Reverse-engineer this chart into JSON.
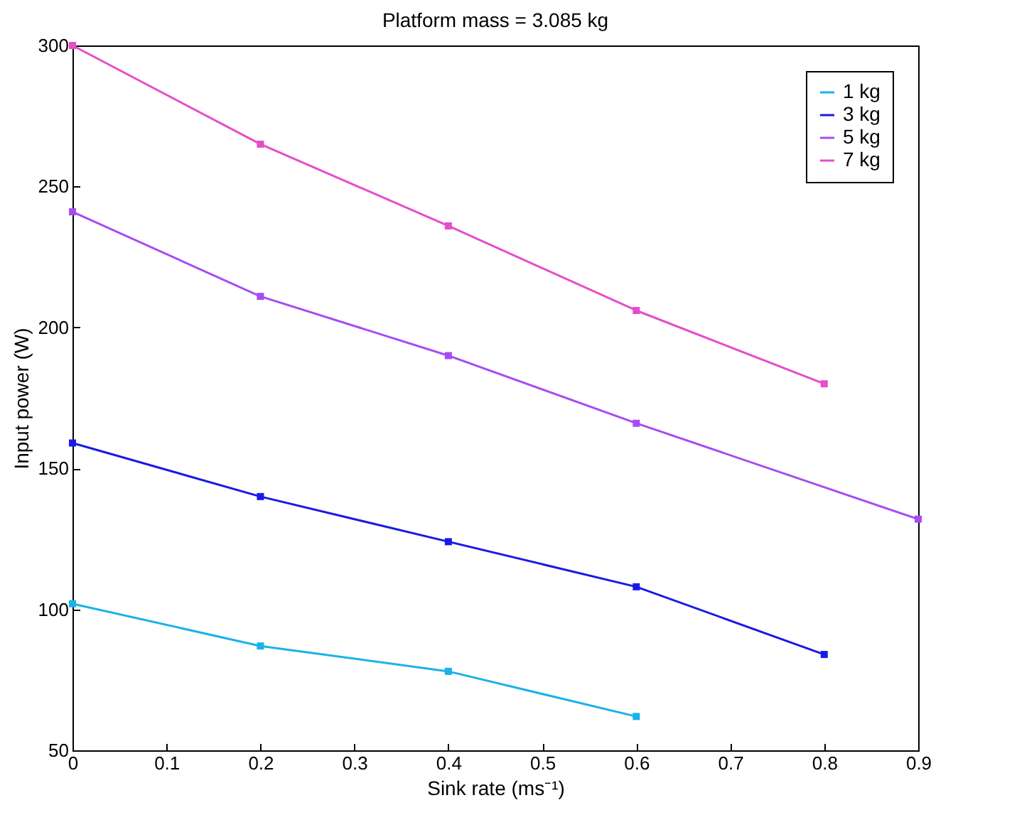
{
  "chart_data": {
    "type": "line",
    "title": "Platform mass = 3.085 kg",
    "xlabel": "Sink rate (ms⁻¹)",
    "ylabel": "Input power (W)",
    "xlim": [
      0,
      0.9
    ],
    "xticks": [
      0,
      0.1,
      0.2,
      0.3,
      0.4,
      0.5,
      0.6,
      0.7,
      0.8,
      0.9
    ],
    "ylim": [
      50,
      300
    ],
    "yticks": [
      50,
      100,
      150,
      200,
      250,
      300
    ],
    "grid": false,
    "legend": "top right",
    "marker": "square",
    "line_style": "solid",
    "series": [
      {
        "name": "1 kg",
        "color": "#1ab2e8",
        "x": [
          0,
          0.2,
          0.4,
          0.6
        ],
        "values": [
          102,
          87,
          78,
          62
        ]
      },
      {
        "name": "3 kg",
        "color": "#1a1ae6",
        "x": [
          0,
          0.2,
          0.4,
          0.6,
          0.8
        ],
        "values": [
          159,
          140,
          124,
          108,
          84
        ]
      },
      {
        "name": "5 kg",
        "color": "#a64df2",
        "x": [
          0,
          0.2,
          0.4,
          0.6,
          0.9
        ],
        "values": [
          241,
          211,
          190,
          166,
          132
        ]
      },
      {
        "name": "7 kg",
        "color": "#e64dc8",
        "x": [
          0,
          0.2,
          0.4,
          0.6,
          0.8
        ],
        "values": [
          300,
          265,
          236,
          206,
          180
        ]
      }
    ]
  }
}
